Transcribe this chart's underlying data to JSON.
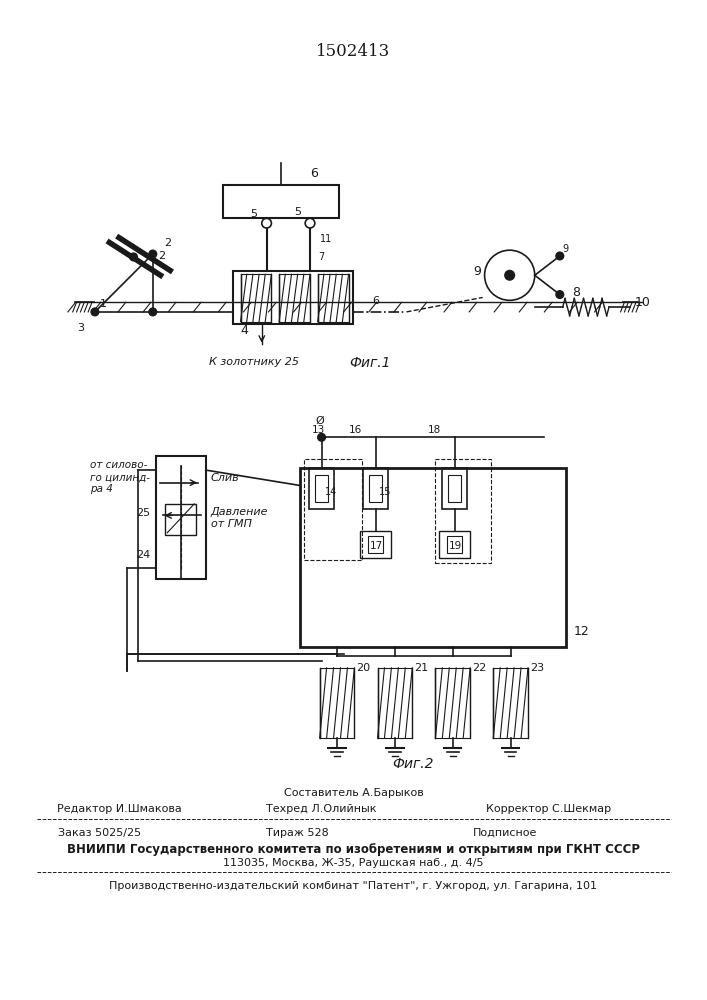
{
  "patent_number": "1502413",
  "fig1_caption": "Фиг.1",
  "fig2_caption": "Фиг.2",
  "fig1_label_bottom": "К золотнику 25",
  "fig2_label_from_cyl": "от силово-\nго цилинд-\nра 4",
  "fig2_label_sliv": "Слив",
  "fig2_label_davl": "Давление\nот ГМП",
  "footer_sostavitel": "Составитель А.Барыков",
  "footer_redaktor": "Редактор И.Шмакова",
  "footer_tekhred": "Техред Л.Олийнык",
  "footer_korrektor": "Корректор С.Шекмар",
  "footer_zakaz": "Заказ 5025/25",
  "footer_tirazh": "Тираж 528",
  "footer_podpisnoe": "Подписное",
  "footer_vniipii": "ВНИИПИ Государственного комитета по изобретениям и открытиям при ГКНТ СССР",
  "footer_address": "113035, Москва, Ж-35, Раушская наб., д. 4/5",
  "footer_proizvod": "Производственно-издательский комбинат \"Патент\", г. Ужгород, ул. Гагарина, 101",
  "bg_color": "#ffffff",
  "line_color": "#1a1a1a",
  "text_color": "#1a1a1a"
}
